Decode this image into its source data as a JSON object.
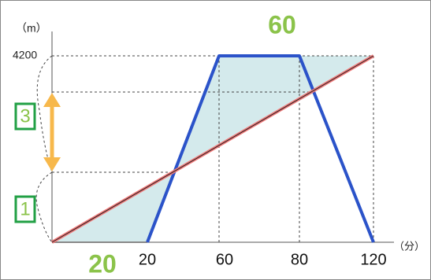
{
  "axis": {
    "y_unit": "（m）",
    "x_unit": "（分）",
    "y_label": "4200",
    "x_labels": [
      "20",
      "60",
      "80",
      "120"
    ]
  },
  "annotations": {
    "top": "60",
    "bottom": "20",
    "box_upper": "3",
    "box_lower": "1"
  }
}
